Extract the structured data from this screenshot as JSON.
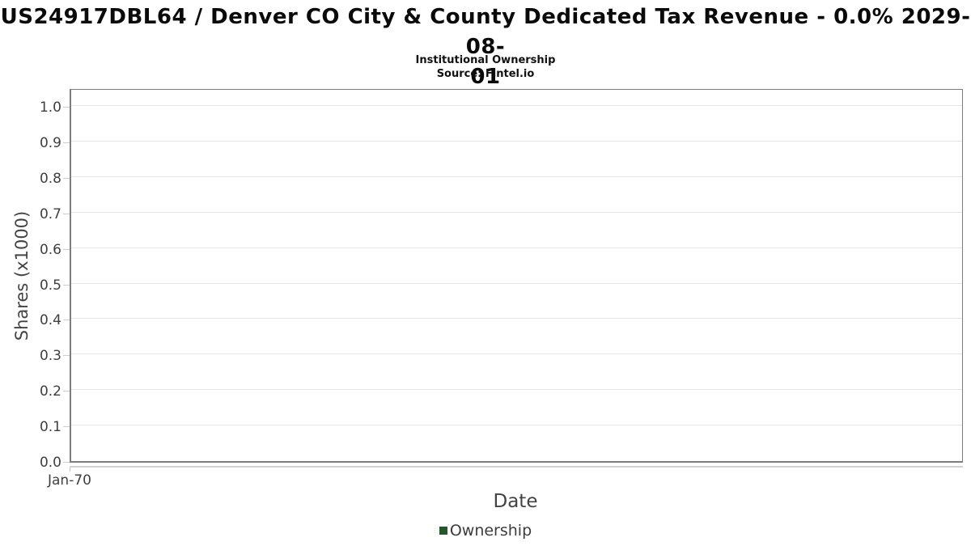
{
  "chart_data": {
    "type": "line",
    "title": "US24917DBL64 / Denver CO City & County Dedicated Tax Revenue - 0.0% 2029-08-01",
    "title_lines": [
      "US24917DBL64 / Denver CO City & County Dedicated Tax Revenue - 0.0% 2029-08-",
      "01"
    ],
    "subtitle": "Institutional Ownership",
    "source": "Source: Fintel.io",
    "xlabel": "Date",
    "ylabel": "Shares (x1000)",
    "x_ticks": [
      "Jan-70"
    ],
    "y_ticks": [
      0.0,
      0.1,
      0.2,
      0.3,
      0.4,
      0.5,
      0.6,
      0.7,
      0.8,
      0.9,
      1.0
    ],
    "ylim": [
      0,
      1.05
    ],
    "grid": "horizontal",
    "legend_position": "bottom",
    "series": [
      {
        "name": "Ownership",
        "color": "#26572f",
        "x": [],
        "y": []
      }
    ]
  },
  "colors": {
    "plot_border": "#7d7d7d",
    "gridline": "#e5e5e5",
    "axis_line": "#d2d2d2",
    "tick_label": "#3f3f3f",
    "axis_label": "#434343",
    "title": "#0a0a0a",
    "legend_marker": "#26572f"
  }
}
